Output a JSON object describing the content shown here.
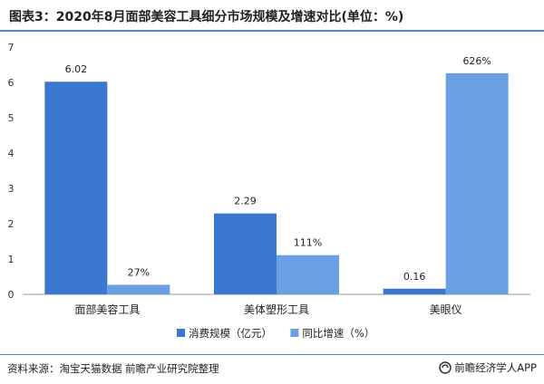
{
  "title": "图表3：2020年8月面部美容工具细分市场规模及增速对比(单位：%)",
  "source": "资料来源：淘宝天猫数据  前瞻产业研究院整理",
  "brand": "前瞻经济学人APP",
  "colors": {
    "series1": "#3a78d0",
    "series2": "#6a9fe3",
    "rule": "#4a86c8"
  },
  "chart_data": {
    "type": "bar",
    "categories": [
      "面部美容工具",
      "美体塑形工具",
      "美眼仪"
    ],
    "series": [
      {
        "name": "消费规模（亿元）",
        "values": [
          6.02,
          2.29,
          0.16
        ],
        "labels": [
          "6.02",
          "2.29",
          "0.16"
        ]
      },
      {
        "name": "同比增速（%）",
        "values": [
          0.27,
          1.11,
          6.26
        ],
        "labels": [
          "27%",
          "111%",
          "626%"
        ]
      }
    ],
    "yticks": [
      "0",
      "1",
      "2",
      "3",
      "4",
      "5",
      "6",
      "7"
    ],
    "ylim": [
      0,
      7
    ],
    "grid": false,
    "legend_position": "bottom"
  }
}
